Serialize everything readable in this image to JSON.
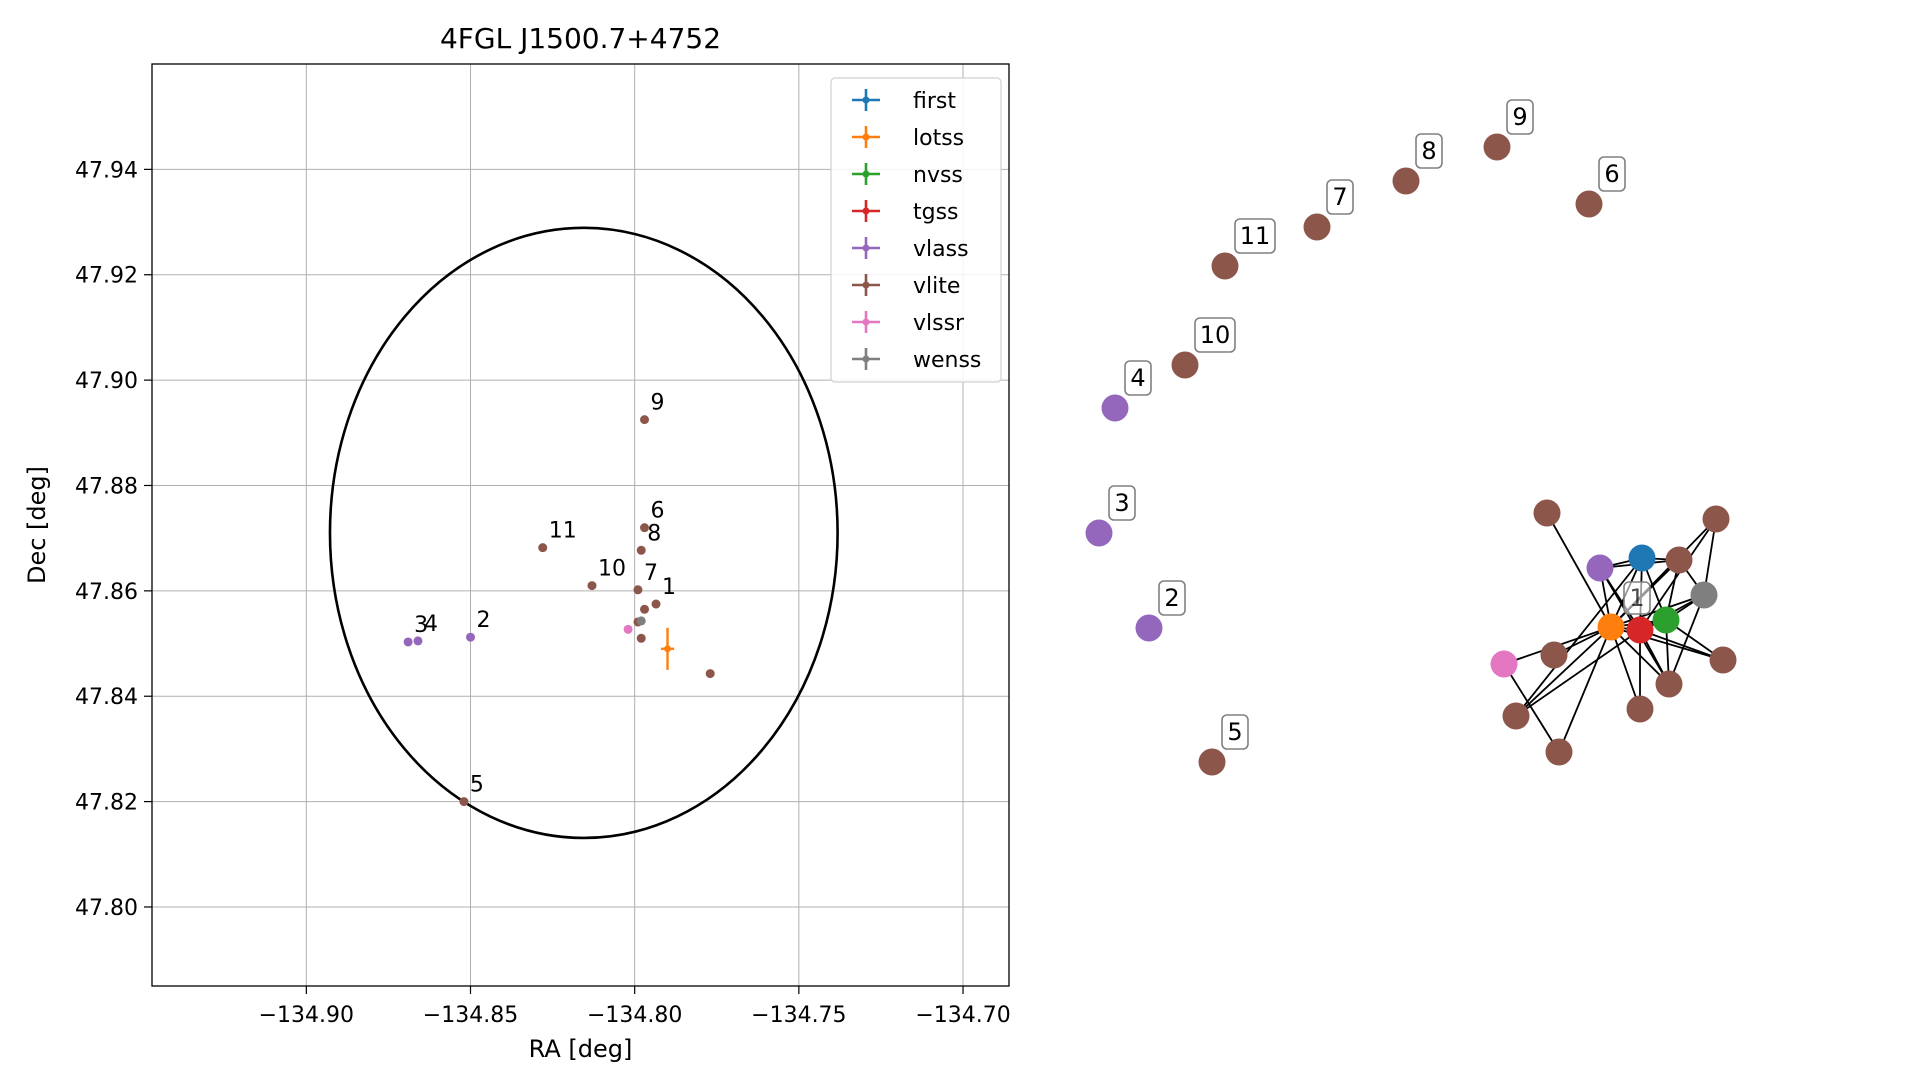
{
  "chart_data": [
    {
      "type": "scatter",
      "title": "4FGL J1500.7+4752",
      "xlabel": "RA [deg]",
      "ylabel": "Dec [deg]",
      "xlim": [
        -134.947,
        -134.686
      ],
      "ylim": [
        47.785,
        47.96
      ],
      "x_ticks": [
        -134.9,
        -134.85,
        -134.8,
        -134.75,
        -134.7
      ],
      "x_tick_labels": [
        "−134.90",
        "−134.85",
        "−134.80",
        "−134.75",
        "−134.70"
      ],
      "y_ticks": [
        47.8,
        47.82,
        47.84,
        47.86,
        47.88,
        47.9,
        47.92,
        47.94
      ],
      "y_tick_labels": [
        "47.80",
        "47.82",
        "47.84",
        "47.86",
        "47.88",
        "47.90",
        "47.92",
        "47.94"
      ],
      "grid": true,
      "legend_position": "upper right",
      "ellipse": {
        "center": [
          -134.8155,
          47.871
        ],
        "semi_axis_ra": 0.0773,
        "semi_axis_dec": 0.0579,
        "color": "#000000"
      },
      "series": [
        {
          "name": "first",
          "color": "#1f77b4",
          "points": []
        },
        {
          "name": "lotss",
          "color": "#ff7f0e",
          "points": [
            {
              "x": -134.79,
              "y": 47.849,
              "xerr": 0.002,
              "yerr": 0.004
            }
          ]
        },
        {
          "name": "nvss",
          "color": "#2ca02c",
          "points": []
        },
        {
          "name": "tgss",
          "color": "#d62728",
          "points": []
        },
        {
          "name": "vlass",
          "color": "#9467bd",
          "points": [
            {
              "x": -134.869,
              "y": 47.8503,
              "label": "3"
            },
            {
              "x": -134.866,
              "y": 47.8505,
              "label": "4"
            },
            {
              "x": -134.85,
              "y": 47.8512,
              "label": "2"
            }
          ]
        },
        {
          "name": "vlite",
          "color": "#8c564b",
          "points": [
            {
              "x": -134.797,
              "y": 47.8925,
              "label": "9"
            },
            {
              "x": -134.797,
              "y": 47.872,
              "label": "6"
            },
            {
              "x": -134.798,
              "y": 47.8677,
              "label": "8"
            },
            {
              "x": -134.828,
              "y": 47.8682,
              "label": "11"
            },
            {
              "x": -134.813,
              "y": 47.861,
              "label": "10"
            },
            {
              "x": -134.799,
              "y": 47.8602,
              "label": "7"
            },
            {
              "x": -134.7935,
              "y": 47.8575,
              "label": "1"
            },
            {
              "x": -134.797,
              "y": 47.8565
            },
            {
              "x": -134.799,
              "y": 47.8541
            },
            {
              "x": -134.798,
              "y": 47.851
            },
            {
              "x": -134.777,
              "y": 47.8443
            },
            {
              "x": -134.852,
              "y": 47.82,
              "label": "5"
            }
          ]
        },
        {
          "name": "vlssr",
          "color": "#e377c2",
          "points": [
            {
              "x": -134.802,
              "y": 47.8527
            }
          ]
        },
        {
          "name": "wenss",
          "color": "#7f7f7f",
          "points": [
            {
              "x": -134.798,
              "y": 47.8543
            }
          ]
        }
      ]
    },
    {
      "type": "graph",
      "nodes": [
        {
          "id": "first",
          "color": "#1f77b4"
        },
        {
          "id": "lotss",
          "color": "#ff7f0e"
        },
        {
          "id": "nvss",
          "color": "#2ca02c"
        },
        {
          "id": "tgss",
          "color": "#d62728"
        },
        {
          "id": "vlssr",
          "color": "#e377c2"
        },
        {
          "id": "wenss",
          "color": "#7f7f7f"
        },
        {
          "id": "vlass-c",
          "color": "#9467bd"
        },
        {
          "id": "vlite-a",
          "color": "#8c564b"
        },
        {
          "id": "vlite-b",
          "color": "#8c564b"
        },
        {
          "id": "vlite-c",
          "color": "#8c564b"
        },
        {
          "id": "vlite-d",
          "color": "#8c564b"
        },
        {
          "id": "vlite-e",
          "color": "#8c564b"
        },
        {
          "id": "vlite-f",
          "color": "#8c564b"
        },
        {
          "id": "vlite-g",
          "color": "#8c564b"
        },
        {
          "id": "vlite-h",
          "color": "#8c564b"
        },
        {
          "id": "vlite-i",
          "color": "#8c564b"
        },
        {
          "id": "n9",
          "color": "#8c564b",
          "label": "9"
        },
        {
          "id": "n8",
          "color": "#8c564b",
          "label": "8"
        },
        {
          "id": "n6",
          "color": "#8c564b",
          "label": "6"
        },
        {
          "id": "n7",
          "color": "#8c564b",
          "label": "7"
        },
        {
          "id": "n11",
          "color": "#8c564b",
          "label": "11"
        },
        {
          "id": "n10",
          "color": "#8c564b",
          "label": "10"
        },
        {
          "id": "n4",
          "color": "#9467bd",
          "label": "4"
        },
        {
          "id": "n3",
          "color": "#9467bd",
          "label": "3"
        },
        {
          "id": "n2",
          "color": "#9467bd",
          "label": "2"
        },
        {
          "id": "n5",
          "color": "#8c564b",
          "label": "5"
        }
      ],
      "cluster_label": "1",
      "edges": [
        [
          "lotss",
          "first"
        ],
        [
          "lotss",
          "nvss"
        ],
        [
          "lotss",
          "tgss"
        ],
        [
          "lotss",
          "wenss"
        ],
        [
          "lotss",
          "vlssr"
        ],
        [
          "lotss",
          "vlass-c"
        ],
        [
          "lotss",
          "vlite-a"
        ],
        [
          "lotss",
          "vlite-b"
        ],
        [
          "lotss",
          "vlite-c"
        ],
        [
          "lotss",
          "vlite-d"
        ],
        [
          "lotss",
          "vlite-e"
        ],
        [
          "lotss",
          "vlite-f"
        ],
        [
          "lotss",
          "vlite-g"
        ],
        [
          "lotss",
          "vlite-h"
        ],
        [
          "lotss",
          "vlite-i"
        ],
        [
          "tgss",
          "first"
        ],
        [
          "tgss",
          "nvss"
        ],
        [
          "tgss",
          "wenss"
        ],
        [
          "tgss",
          "vlass-c"
        ],
        [
          "tgss",
          "vlite-c"
        ],
        [
          "tgss",
          "vlite-d"
        ],
        [
          "tgss",
          "vlite-f"
        ],
        [
          "tgss",
          "vlite-g"
        ],
        [
          "tgss",
          "vlite-i"
        ],
        [
          "first",
          "nvss"
        ],
        [
          "first",
          "vlass-c"
        ],
        [
          "first",
          "vlite-b"
        ],
        [
          "first",
          "vlite-f"
        ],
        [
          "nvss",
          "wenss"
        ],
        [
          "nvss",
          "vlite-b"
        ],
        [
          "nvss",
          "vlite-g"
        ],
        [
          "nvss",
          "vlite-d"
        ],
        [
          "wenss",
          "vlite-c"
        ],
        [
          "wenss",
          "vlite-g"
        ],
        [
          "vlass-c",
          "vlite-b"
        ],
        [
          "vlass-c",
          "vlite-g"
        ],
        [
          "vlite-b",
          "wenss"
        ],
        [
          "vlssr",
          "vlite-h"
        ]
      ]
    }
  ]
}
